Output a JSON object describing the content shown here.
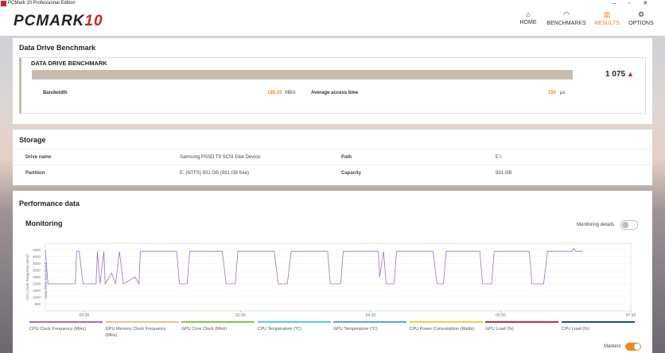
{
  "window_title": "PCMark 10 Professional Edition",
  "header": {
    "logo": "PCMARK",
    "logo_num": "10",
    "nav": [
      "HOME",
      "BENCHMARKS",
      "RESULTS",
      "OPTIONS"
    ],
    "active_index": 2
  },
  "benchmark": {
    "heading": "Data Drive Benchmark",
    "name": "DATA DRIVE BENCHMARK",
    "score": "1 075",
    "bandwidth_label": "Bandwidth",
    "bandwidth_value": "165.33",
    "bandwidth_unit": "MB/s",
    "access_label": "Average access time",
    "access_value": "150",
    "access_unit": "μs"
  },
  "storage": {
    "heading": "Storage",
    "rows": [
      [
        "Drive name",
        "Samsung PSSD T9 SCSI Disk Device",
        "Path",
        "E:\\"
      ],
      [
        "Partition",
        "E: (NTFS) 931 GB (931 GB free)",
        "Capacity",
        "931 GB"
      ]
    ]
  },
  "performance": {
    "heading": "Performance data",
    "monitoring": "Monitoring",
    "details": "Monitoring details",
    "markers": "Markers",
    "chart_data": {
      "type": "line",
      "y_label": "CPU Clock Frequency (MHz)",
      "marker_label": "Data Drive Benchmark",
      "x": [
        0,
        2,
        23,
        24,
        26,
        29,
        39,
        40,
        42,
        45,
        46,
        51,
        54,
        57,
        60,
        69,
        72,
        73,
        101,
        103,
        109,
        111,
        136,
        139,
        146,
        148,
        176,
        179,
        186,
        189,
        217,
        219,
        227,
        229,
        256,
        257,
        260,
        262,
        268,
        270,
        298,
        301,
        306,
        308,
        334,
        336,
        343,
        345,
        372,
        374,
        383,
        386,
        405,
        406,
        408,
        413
      ],
      "series": [
        {
          "name": "CPU Clock Frequency (MHz)",
          "color": "#9c6fd0",
          "values": [
            4500,
            2000,
            2000,
            4400,
            4400,
            2000,
            2000,
            4400,
            2000,
            4400,
            2000,
            2800,
            2000,
            4400,
            2000,
            2500,
            2000,
            4400,
            4400,
            2000,
            2000,
            4400,
            4400,
            2000,
            2000,
            4400,
            4400,
            2000,
            2000,
            4400,
            4400,
            2000,
            2000,
            4400,
            4400,
            2500,
            4400,
            2000,
            2000,
            4400,
            4400,
            2000,
            2000,
            4400,
            4400,
            2000,
            2000,
            4400,
            4400,
            2000,
            2000,
            4400,
            4400,
            4600,
            4400,
            4400
          ]
        }
      ],
      "other_legend": [
        {
          "name": "GPU Memory Clock Frequency (MHz)",
          "color": "#e6c48c"
        },
        {
          "name": "GPU Core Clock (MHz)",
          "color": "#8bc34a"
        },
        {
          "name": "CPU Temperature (°C)",
          "color": "#4fd4c8"
        },
        {
          "name": "GPU Temperature (°C)",
          "color": "#5ba4d4"
        },
        {
          "name": "CPU Power Consumption (Watts)",
          "color": "#e2d440"
        },
        {
          "name": "GPU Load (%)",
          "color": "#c0303a"
        },
        {
          "name": "CPU Load (%)",
          "color": "#1f4f7a"
        }
      ],
      "xlim": [
        0,
        450
      ],
      "ylim": [
        0,
        5000
      ],
      "xticks": [
        {
          "value": 30,
          "label": "00:30"
        },
        {
          "value": 150,
          "label": "02:30"
        },
        {
          "value": 250,
          "label": "04:10"
        },
        {
          "value": 350,
          "label": "05:50"
        },
        {
          "value": 450,
          "label": "07:30"
        }
      ],
      "yticks": [
        500,
        1000,
        1500,
        2000,
        2500,
        3000,
        3500,
        4000,
        4500
      ],
      "grid": true
    }
  }
}
